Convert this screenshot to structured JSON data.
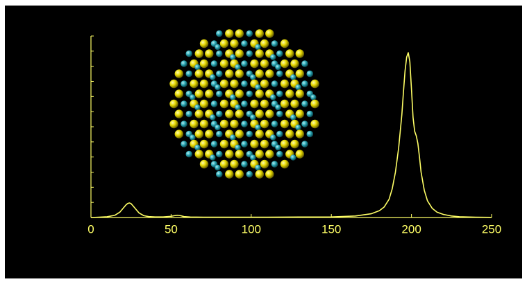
{
  "chart_data": {
    "type": "line",
    "x": [
      0,
      5,
      10,
      15,
      18,
      20,
      22,
      23,
      24,
      25,
      26,
      28,
      30,
      33,
      36,
      40,
      45,
      50,
      52,
      54,
      56,
      58,
      62,
      70,
      90,
      110,
      130,
      150,
      165,
      175,
      180,
      183,
      186,
      188,
      190,
      192,
      194,
      195,
      196,
      197,
      198,
      199,
      200,
      201,
      202,
      203,
      204,
      205,
      206,
      208,
      210,
      213,
      216,
      220,
      225,
      230,
      240,
      250
    ],
    "series": [
      {
        "color": "#ffff66",
        "values": [
          0,
          0.02,
          0.05,
          0.15,
          0.35,
          0.6,
          0.85,
          0.93,
          0.96,
          0.92,
          0.8,
          0.55,
          0.3,
          0.12,
          0.06,
          0.04,
          0.04,
          0.08,
          0.12,
          0.15,
          0.12,
          0.06,
          0.03,
          0.02,
          0.02,
          0.02,
          0.03,
          0.04,
          0.1,
          0.25,
          0.45,
          0.7,
          1.2,
          1.9,
          3.0,
          4.6,
          6.8,
          8.3,
          9.7,
          10.6,
          10.9,
          10.3,
          8.5,
          6.6,
          5.7,
          5.4,
          4.9,
          4.0,
          3.0,
          1.8,
          1.1,
          0.6,
          0.35,
          0.2,
          0.1,
          0.05,
          0.02,
          0.01
        ]
      }
    ],
    "xlim": [
      0,
      250
    ],
    "xticks": [
      0,
      50,
      100,
      150,
      200,
      250
    ],
    "ylim": [
      0,
      12
    ],
    "yticks": [
      0,
      1,
      2,
      3,
      4,
      5,
      6,
      7,
      8,
      9,
      10,
      11,
      12
    ],
    "ytick_labels": false,
    "axis_color": "#ffff66"
  }
}
